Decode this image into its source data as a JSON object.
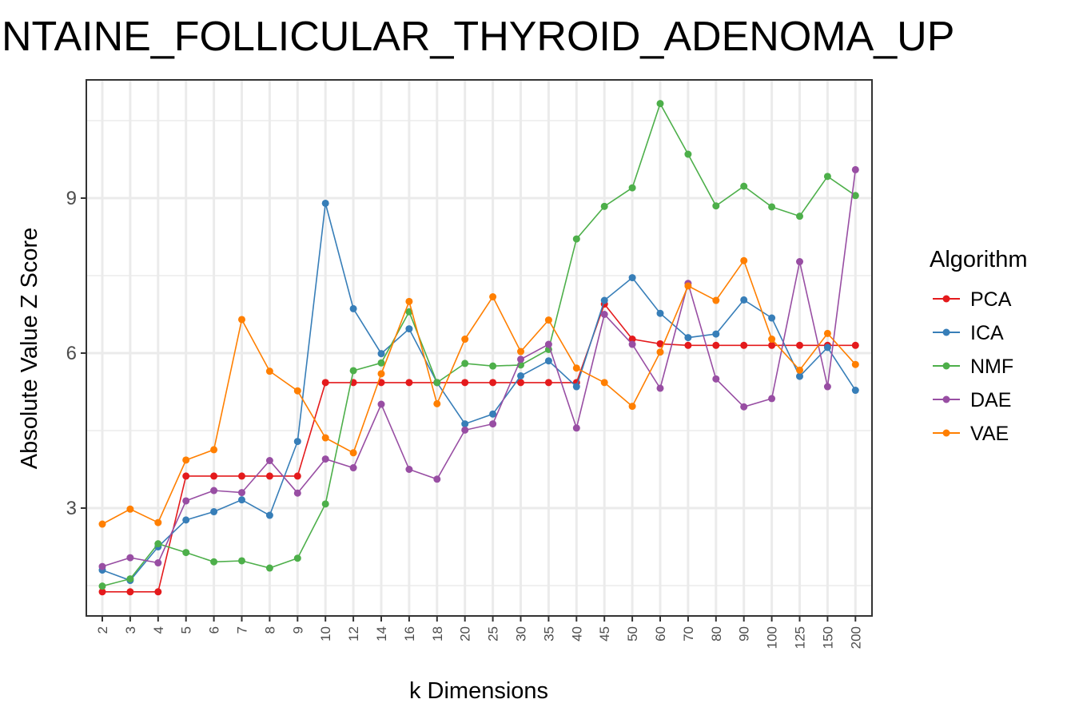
{
  "chart_data": {
    "type": "line",
    "title": "NTAINE_FOLLICULAR_THYROID_ADENOMA_UP",
    "xlabel": "k Dimensions",
    "ylabel": "Absolute Value Z Score",
    "categories": [
      "2",
      "3",
      "4",
      "5",
      "6",
      "7",
      "8",
      "9",
      "10",
      "12",
      "14",
      "16",
      "18",
      "20",
      "25",
      "30",
      "35",
      "40",
      "45",
      "50",
      "60",
      "70",
      "80",
      "90",
      "100",
      "125",
      "150",
      "200"
    ],
    "yticks": [
      3,
      6,
      9
    ],
    "ylim": [
      0.8,
      11.2
    ],
    "grid": true,
    "legend": {
      "title": "Algorithm",
      "position": "right"
    },
    "series": [
      {
        "name": "PCA",
        "color": "#e41a1c",
        "values": [
          1.38,
          1.38,
          1.38,
          3.62,
          3.62,
          3.62,
          3.62,
          3.62,
          5.43,
          5.43,
          5.43,
          5.43,
          5.43,
          5.43,
          5.43,
          5.43,
          5.43,
          5.43,
          6.95,
          6.27,
          6.18,
          6.15,
          6.15,
          6.15,
          6.15,
          6.15,
          6.15,
          6.15
        ]
      },
      {
        "name": "ICA",
        "color": "#377eb8",
        "values": [
          1.8,
          1.6,
          2.25,
          2.77,
          2.93,
          3.16,
          2.86,
          4.29,
          8.9,
          6.86,
          5.99,
          6.47,
          5.43,
          4.63,
          4.82,
          5.56,
          5.85,
          5.35,
          7.02,
          7.46,
          6.77,
          6.3,
          6.37,
          7.03,
          6.68,
          5.55,
          6.11,
          5.28
        ]
      },
      {
        "name": "NMF",
        "color": "#4daf4a",
        "values": [
          1.49,
          1.63,
          2.31,
          2.14,
          1.96,
          1.98,
          1.84,
          2.03,
          3.08,
          5.66,
          5.81,
          6.8,
          5.43,
          5.8,
          5.75,
          5.77,
          6.07,
          8.21,
          8.84,
          9.2,
          10.83,
          9.85,
          8.85,
          9.23,
          8.83,
          8.65,
          9.42,
          9.05
        ]
      },
      {
        "name": "DAE",
        "color": "#984ea3",
        "values": [
          1.87,
          2.04,
          1.94,
          3.14,
          3.34,
          3.3,
          3.92,
          3.29,
          3.95,
          3.78,
          5.01,
          3.75,
          3.56,
          4.51,
          4.63,
          5.88,
          6.17,
          4.55,
          6.75,
          6.17,
          5.32,
          7.35,
          5.5,
          4.96,
          5.12,
          7.77,
          5.35,
          9.55
        ]
      },
      {
        "name": "VAE",
        "color": "#ff7f00",
        "values": [
          2.69,
          2.98,
          2.72,
          3.93,
          4.13,
          6.65,
          5.65,
          5.27,
          4.36,
          4.07,
          5.6,
          7.0,
          5.02,
          6.27,
          7.09,
          6.03,
          6.64,
          5.71,
          5.43,
          4.97,
          6.02,
          7.3,
          7.02,
          7.79,
          6.27,
          5.67,
          6.38,
          5.78
        ]
      }
    ]
  }
}
